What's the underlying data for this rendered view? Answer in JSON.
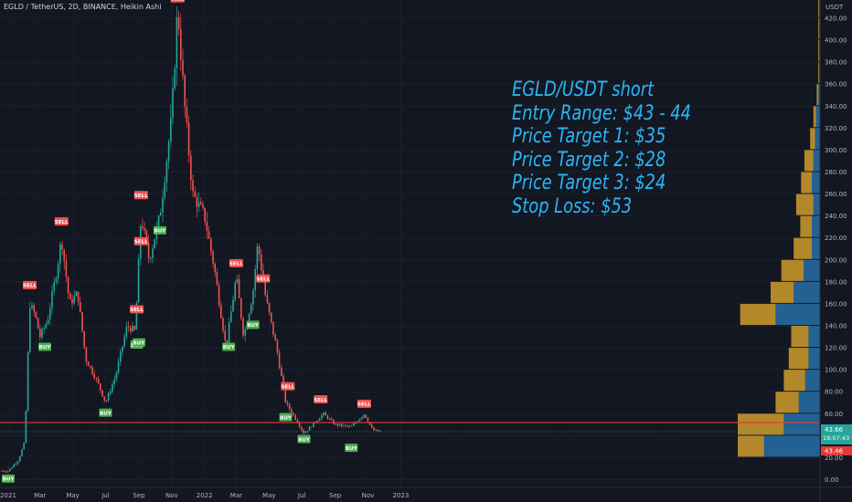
{
  "header": {
    "symbol_line": "EGLD / TetherUS, 2D, BINANCE, Heikin Ashi"
  },
  "annotation": {
    "lines": [
      "EGLD/USDT short",
      "Entry Range: $43 - 44",
      "Price Target 1: $35",
      "Price Target 2: $28",
      "Price Target 3: $24",
      "Stop Loss: $53"
    ],
    "color": "#29b6f6"
  },
  "price_axis": {
    "currency": "USDT",
    "ticks": [
      "420.00",
      "400.00",
      "380.00",
      "360.00",
      "340.00",
      "320.00",
      "300.00",
      "280.00",
      "260.00",
      "240.00",
      "220.00",
      "200.00",
      "180.00",
      "160.00",
      "140.00",
      "120.00",
      "100.00",
      "80.00",
      "60.00",
      "40.00",
      "20.00",
      "0.00"
    ],
    "last_price": "43.66",
    "countdown": "19:07:43",
    "line_price": "43.46"
  },
  "time_axis": {
    "labels": [
      "2021",
      "Mar",
      "May",
      "Jul",
      "Sep",
      "Nov",
      "2022",
      "Mar",
      "May",
      "Jul",
      "Sep",
      "Nov",
      "2023"
    ]
  },
  "colors": {
    "background": "#131722",
    "up": "#26a69a",
    "down": "#ef5350",
    "hline": "#e53935",
    "vp_up": "#2f8fd8",
    "vp_down": "#e0a82e"
  },
  "chart_data": {
    "type": "candlestick",
    "chart_style": "Heikin Ashi",
    "ylim": [
      0,
      430
    ],
    "horizontal_line": 52,
    "close_series": [
      {
        "x": "2021-01-01",
        "y": 8
      },
      {
        "x": "2021-01-20",
        "y": 18
      },
      {
        "x": "2021-02-01",
        "y": 35
      },
      {
        "x": "2021-02-10",
        "y": 160
      },
      {
        "x": "2021-02-20",
        "y": 150
      },
      {
        "x": "2021-03-01",
        "y": 130
      },
      {
        "x": "2021-03-15",
        "y": 145
      },
      {
        "x": "2021-04-01",
        "y": 190
      },
      {
        "x": "2021-04-10",
        "y": 220
      },
      {
        "x": "2021-04-25",
        "y": 160
      },
      {
        "x": "2021-05-10",
        "y": 170
      },
      {
        "x": "2021-05-25",
        "y": 110
      },
      {
        "x": "2021-06-15",
        "y": 90
      },
      {
        "x": "2021-07-01",
        "y": 70
      },
      {
        "x": "2021-07-20",
        "y": 95
      },
      {
        "x": "2021-08-10",
        "y": 140
      },
      {
        "x": "2021-08-25",
        "y": 135
      },
      {
        "x": "2021-09-05",
        "y": 240
      },
      {
        "x": "2021-09-20",
        "y": 200
      },
      {
        "x": "2021-10-10",
        "y": 240
      },
      {
        "x": "2021-11-01",
        "y": 330
      },
      {
        "x": "2021-11-12",
        "y": 430
      },
      {
        "x": "2021-11-25",
        "y": 340
      },
      {
        "x": "2021-12-10",
        "y": 260
      },
      {
        "x": "2022-01-01",
        "y": 240
      },
      {
        "x": "2022-01-20",
        "y": 190
      },
      {
        "x": "2022-02-10",
        "y": 120
      },
      {
        "x": "2022-03-01",
        "y": 185
      },
      {
        "x": "2022-03-15",
        "y": 130
      },
      {
        "x": "2022-04-01",
        "y": 170
      },
      {
        "x": "2022-04-10",
        "y": 215
      },
      {
        "x": "2022-04-25",
        "y": 165
      },
      {
        "x": "2022-05-15",
        "y": 120
      },
      {
        "x": "2022-06-01",
        "y": 70
      },
      {
        "x": "2022-06-20",
        "y": 55
      },
      {
        "x": "2022-07-05",
        "y": 42
      },
      {
        "x": "2022-07-25",
        "y": 52
      },
      {
        "x": "2022-08-10",
        "y": 60
      },
      {
        "x": "2022-09-01",
        "y": 50
      },
      {
        "x": "2022-10-01",
        "y": 48
      },
      {
        "x": "2022-10-25",
        "y": 60
      },
      {
        "x": "2022-11-10",
        "y": 45
      },
      {
        "x": "2022-11-25",
        "y": 43.66
      }
    ],
    "signals": [
      {
        "label": "BUY",
        "x": "2021-01-01",
        "y": 8
      },
      {
        "label": "SELL",
        "x": "2021-02-10",
        "y": 170
      },
      {
        "label": "BUY",
        "x": "2021-03-10",
        "y": 128
      },
      {
        "label": "SELL",
        "x": "2021-04-10",
        "y": 228
      },
      {
        "label": "BUY",
        "x": "2021-07-01",
        "y": 68
      },
      {
        "label": "SELL",
        "x": "2021-08-28",
        "y": 148
      },
      {
        "label": "BUY",
        "x": "2021-08-28",
        "y": 130
      },
      {
        "label": "BUY",
        "x": "2021-09-01",
        "y": 132
      },
      {
        "label": "SELL",
        "x": "2021-09-05",
        "y": 210
      },
      {
        "label": "SELL",
        "x": "2021-09-05",
        "y": 252
      },
      {
        "label": "BUY",
        "x": "2021-10-10",
        "y": 234
      },
      {
        "label": "SELL",
        "x": "2021-11-12",
        "y": 431
      },
      {
        "label": "BUY",
        "x": "2022-02-15",
        "y": 128
      },
      {
        "label": "SELL",
        "x": "2022-03-01",
        "y": 190
      },
      {
        "label": "BUY",
        "x": "2022-04-01",
        "y": 148
      },
      {
        "label": "SELL",
        "x": "2022-04-20",
        "y": 176
      },
      {
        "label": "SELL",
        "x": "2022-06-05",
        "y": 78
      },
      {
        "label": "BUY",
        "x": "2022-06-01",
        "y": 64
      },
      {
        "label": "BUY",
        "x": "2022-07-05",
        "y": 44
      },
      {
        "label": "SELL",
        "x": "2022-08-05",
        "y": 66
      },
      {
        "label": "BUY",
        "x": "2022-10-01",
        "y": 36
      },
      {
        "label": "SELL",
        "x": "2022-10-25",
        "y": 62
      }
    ],
    "volume_profile": [
      {
        "low": 20,
        "high": 40,
        "up": 68,
        "down": 32
      },
      {
        "low": 40,
        "high": 60,
        "up": 44,
        "down": 56
      },
      {
        "low": 60,
        "high": 80,
        "up": 26,
        "down": 28
      },
      {
        "low": 80,
        "high": 100,
        "up": 18,
        "down": 26
      },
      {
        "low": 100,
        "high": 120,
        "up": 14,
        "down": 24
      },
      {
        "low": 120,
        "high": 140,
        "up": 14,
        "down": 21
      },
      {
        "low": 140,
        "high": 160,
        "up": 54,
        "down": 43
      },
      {
        "low": 160,
        "high": 180,
        "up": 32,
        "down": 28
      },
      {
        "low": 180,
        "high": 200,
        "up": 20,
        "down": 27
      },
      {
        "low": 200,
        "high": 220,
        "up": 10,
        "down": 22
      },
      {
        "low": 220,
        "high": 240,
        "up": 10,
        "down": 14
      },
      {
        "low": 240,
        "high": 260,
        "up": 8,
        "down": 21
      },
      {
        "low": 260,
        "high": 280,
        "up": 10,
        "down": 13
      },
      {
        "low": 280,
        "high": 300,
        "up": 8,
        "down": 11
      },
      {
        "low": 300,
        "high": 320,
        "up": 6,
        "down": 6
      },
      {
        "low": 320,
        "high": 340,
        "up": 5,
        "down": 3
      },
      {
        "low": 340,
        "high": 360,
        "up": 2,
        "down": 2
      },
      {
        "low": 360,
        "high": 380,
        "up": 1,
        "down": 1
      },
      {
        "low": 380,
        "high": 400,
        "up": 1,
        "down": 1
      },
      {
        "low": 400,
        "high": 420,
        "up": 1,
        "down": 1
      },
      {
        "low": 420,
        "high": 440,
        "up": 1,
        "down": 1
      }
    ]
  }
}
